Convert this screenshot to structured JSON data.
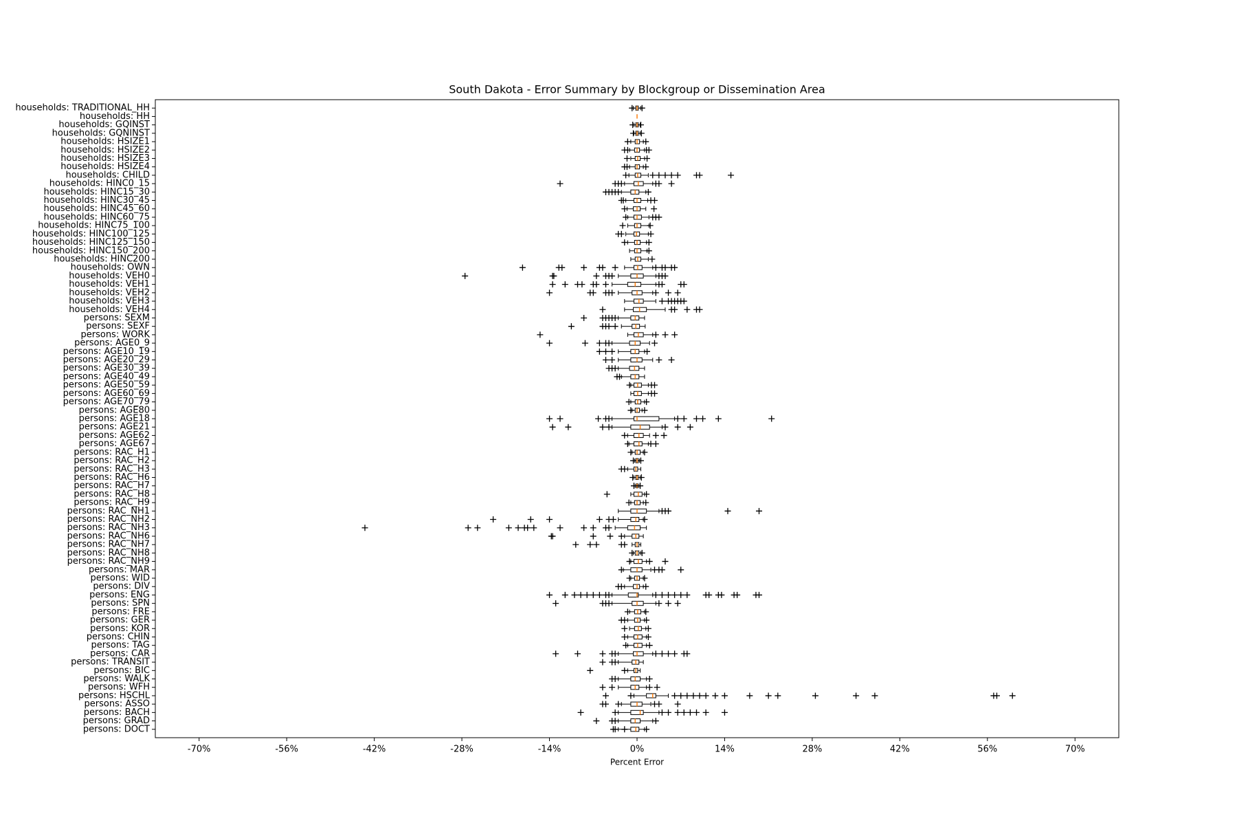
{
  "chart_data": {
    "type": "boxplot",
    "orientation": "horizontal",
    "title": "South Dakota - Error Summary by Blockgroup or Dissemination Area",
    "xlabel": "Percent Error",
    "xlim": [
      -77,
      77
    ],
    "xticks": [
      {
        "value": -70,
        "label": "-70%"
      },
      {
        "value": -56,
        "label": "-56%"
      },
      {
        "value": -42,
        "label": "-42%"
      },
      {
        "value": -28,
        "label": "-28%"
      },
      {
        "value": -14,
        "label": "-14%"
      },
      {
        "value": 0,
        "label": "0%"
      },
      {
        "value": 14,
        "label": "14%"
      },
      {
        "value": 28,
        "label": "28%"
      },
      {
        "value": 42,
        "label": "42%"
      },
      {
        "value": 56,
        "label": "56%"
      },
      {
        "value": 70,
        "label": "70%"
      }
    ],
    "color": "#000000",
    "median_color": "#ff7f0e",
    "grid": false,
    "categories": [
      "households: TRADITIONAL_HH",
      "households: HH",
      "households: GQINST",
      "households: GQNINST",
      "households: HSIZE1",
      "households: HSIZE2",
      "households: HSIZE3",
      "households: HSIZE4",
      "households: CHILD",
      "households: HINC0_15",
      "households: HINC15_30",
      "households: HINC30_45",
      "households: HINC45_60",
      "households: HINC60_75",
      "households: HINC75_100",
      "households: HINC100_125",
      "households: HINC125_150",
      "households: HINC150_200",
      "households: HINC200",
      "households: OWN",
      "households: VEH0",
      "households: VEH1",
      "households: VEH2",
      "households: VEH3",
      "households: VEH4",
      "persons: SEXM",
      "persons: SEXF",
      "persons: WORK",
      "persons: AGE0_9",
      "persons: AGE10_19",
      "persons: AGE20_29",
      "persons: AGE30_39",
      "persons: AGE40_49",
      "persons: AGE50_59",
      "persons: AGE60_69",
      "persons: AGE70_79",
      "persons: AGE80",
      "persons: AGE18",
      "persons: AGE21",
      "persons: AGE62",
      "persons: AGE67",
      "persons: RAC_H1",
      "persons: RAC_H2",
      "persons: RAC_H3",
      "persons: RAC_H6",
      "persons: RAC_H7",
      "persons: RAC_H8",
      "persons: RAC_H9",
      "persons: RAC_NH1",
      "persons: RAC_NH2",
      "persons: RAC_NH3",
      "persons: RAC_NH6",
      "persons: RAC_NH7",
      "persons: RAC_NH8",
      "persons: RAC_NH9",
      "persons: MAR",
      "persons: WID",
      "persons: DIV",
      "persons: ENG",
      "persons: SPN",
      "persons: FRE",
      "persons: GER",
      "persons: KOR",
      "persons: CHIN",
      "persons: TAG",
      "persons: CAR",
      "persons: TRANSIT",
      "persons: BIC",
      "persons: WALK",
      "persons: WFH",
      "persons: HSCHL",
      "persons: ASSO",
      "persons: BACH",
      "persons: GRAD",
      "persons: DOCT"
    ],
    "boxes": [
      {
        "q1": -0.2,
        "median": 0,
        "q3": 0.2,
        "whislo": -0.6,
        "whishi": 0.6,
        "fliers": [
          -0.8,
          0.8
        ]
      },
      {
        "q1": 0,
        "median": 0,
        "q3": 0,
        "whislo": 0,
        "whishi": 0,
        "fliers": []
      },
      {
        "q1": -0.2,
        "median": 0,
        "q3": 0.2,
        "whislo": -0.5,
        "whishi": 0.5,
        "fliers": [
          -0.7,
          0.6
        ]
      },
      {
        "q1": -0.2,
        "median": 0,
        "q3": 0.2,
        "whislo": -0.5,
        "whishi": 0.5,
        "fliers": [
          -0.6,
          0.7
        ]
      },
      {
        "q1": -0.3,
        "median": 0,
        "q3": 0.4,
        "whislo": -1,
        "whishi": 1,
        "fliers": [
          -1.5,
          1.4
        ]
      },
      {
        "q1": -0.4,
        "median": 0,
        "q3": 0.4,
        "whislo": -1.2,
        "whishi": 1.2,
        "fliers": [
          -2,
          -1.5,
          1.5,
          1.9
        ]
      },
      {
        "q1": -0.3,
        "median": 0.1,
        "q3": 0.5,
        "whislo": -1,
        "whishi": 1.2,
        "fliers": [
          -1.6,
          1.6
        ]
      },
      {
        "q1": -0.3,
        "median": 0,
        "q3": 0.4,
        "whislo": -1.2,
        "whishi": 1,
        "fliers": [
          -2,
          -1.6,
          1.4
        ]
      },
      {
        "q1": -0.3,
        "median": 0.1,
        "q3": 0.6,
        "whislo": -1.3,
        "whishi": 1.8,
        "fliers": [
          -1.8,
          2.5,
          3.5,
          4.5,
          5.5,
          6.5,
          9.5,
          10,
          15
        ]
      },
      {
        "q1": -0.5,
        "median": 0.2,
        "q3": 1,
        "whislo": -2,
        "whishi": 2.5,
        "fliers": [
          -12.3,
          -3.5,
          -3,
          -2.5,
          3,
          3.5,
          5.5
        ]
      },
      {
        "q1": -1,
        "median": -0.3,
        "q3": 0.3,
        "whislo": -2.5,
        "whishi": 1.4,
        "fliers": [
          -5,
          -4.5,
          -4,
          -3.5,
          -3,
          1.8
        ]
      },
      {
        "q1": -0.5,
        "median": 0,
        "q3": 0.6,
        "whislo": -1.8,
        "whishi": 1.7,
        "fliers": [
          -2.5,
          -2.2,
          2.2,
          2.8
        ]
      },
      {
        "q1": -0.6,
        "median": 0,
        "q3": 0.5,
        "whislo": -1.6,
        "whishi": 1.4,
        "fliers": [
          -2,
          2.7
        ]
      },
      {
        "q1": -0.5,
        "median": 0,
        "q3": 0.7,
        "whislo": -1.5,
        "whishi": 1.9,
        "fliers": [
          -1.8,
          2.5,
          3,
          3.5
        ]
      },
      {
        "q1": -0.4,
        "median": 0,
        "q3": 0.6,
        "whislo": -1.5,
        "whishi": 1.9,
        "fliers": [
          -2.3,
          2.1
        ]
      },
      {
        "q1": -0.5,
        "median": -0.1,
        "q3": 0.4,
        "whislo": -1.8,
        "whishi": 1.8,
        "fliers": [
          -3,
          -2.5,
          2.2
        ]
      },
      {
        "q1": -0.4,
        "median": 0,
        "q3": 0.5,
        "whislo": -1.5,
        "whishi": 1.5,
        "fliers": [
          -2,
          1.9
        ]
      },
      {
        "q1": -0.4,
        "median": 0,
        "q3": 0.6,
        "whislo": -1.2,
        "whishi": 1.6,
        "fliers": [
          1.9
        ]
      },
      {
        "q1": -0.3,
        "median": 0.1,
        "q3": 0.6,
        "whislo": -1,
        "whishi": 1.8,
        "fliers": [
          2.4
        ]
      },
      {
        "q1": -0.5,
        "median": 0.1,
        "q3": 0.8,
        "whislo": -2,
        "whishi": 2.5,
        "fliers": [
          -18.3,
          -12.5,
          -12,
          -8.5,
          -6,
          -5.5,
          -3.5,
          3,
          4,
          4.5,
          5.5,
          6
        ]
      },
      {
        "q1": -1,
        "median": 0,
        "q3": 1,
        "whislo": -3,
        "whishi": 3,
        "fliers": [
          -27.5,
          -13.5,
          -13.3,
          -6.5,
          -5,
          -4.5,
          -4,
          3.5,
          4,
          4.5
        ]
      },
      {
        "q1": -1.5,
        "median": -0.3,
        "q3": 0.6,
        "whislo": -4,
        "whishi": 3,
        "fliers": [
          -13.5,
          -11.5,
          -9.5,
          -8.8,
          -7,
          -6.5,
          -5,
          3.5,
          4,
          7,
          7.5
        ]
      },
      {
        "q1": -0.8,
        "median": 0,
        "q3": 0.8,
        "whislo": -3,
        "whishi": 2.5,
        "fliers": [
          -14,
          -7.5,
          -7,
          -5,
          -4.5,
          -4,
          3,
          5,
          6.5
        ]
      },
      {
        "q1": -0.5,
        "median": 0.3,
        "q3": 1,
        "whislo": -2,
        "whishi": 3,
        "fliers": [
          4,
          5,
          5.5,
          6,
          6.5,
          7,
          7.5
        ]
      },
      {
        "q1": -0.6,
        "median": 0.4,
        "q3": 1.5,
        "whislo": -2,
        "whishi": 4.5,
        "fliers": [
          -5.5,
          5.5,
          6,
          8,
          9.5,
          10
        ]
      },
      {
        "q1": -1,
        "median": -0.3,
        "q3": 0.3,
        "whislo": -3,
        "whishi": 1.2,
        "fliers": [
          -8.5,
          -5.5,
          -5,
          -4.5,
          -4,
          -3.5
        ]
      },
      {
        "q1": -0.8,
        "median": -0.2,
        "q3": 0.4,
        "whislo": -2.5,
        "whishi": 1.3,
        "fliers": [
          -10.5,
          -5.5,
          -5,
          -4.5,
          -3.5
        ]
      },
      {
        "q1": -0.5,
        "median": 0.2,
        "q3": 1,
        "whislo": -1.5,
        "whishi": 2.5,
        "fliers": [
          -15.5,
          3,
          4.5,
          6
        ]
      },
      {
        "q1": -1.2,
        "median": -0.3,
        "q3": 0.5,
        "whislo": -4,
        "whishi": 2,
        "fliers": [
          -14,
          -8.3,
          -6,
          -5,
          -4.5,
          2.8
        ]
      },
      {
        "q1": -1,
        "median": -0.3,
        "q3": 0.3,
        "whislo": -3,
        "whishi": 1.2,
        "fliers": [
          -6,
          -5,
          -4,
          1.6
        ]
      },
      {
        "q1": -1,
        "median": 0,
        "q3": 0.8,
        "whislo": -3,
        "whishi": 2.5,
        "fliers": [
          -5,
          -4,
          3.5,
          5.5
        ]
      },
      {
        "q1": -1.2,
        "median": -0.4,
        "q3": 0.3,
        "whislo": -3,
        "whishi": 1.2,
        "fliers": [
          -4.5,
          -4,
          -3.5
        ]
      },
      {
        "q1": -1,
        "median": -0.3,
        "q3": 0.3,
        "whislo": -2.5,
        "whishi": 1.2,
        "fliers": [
          -3.2,
          -2.8
        ]
      },
      {
        "q1": -0.5,
        "median": 0.1,
        "q3": 0.7,
        "whislo": -1,
        "whishi": 1.8,
        "fliers": [
          -1.2,
          2.3,
          2.8
        ]
      },
      {
        "q1": -0.5,
        "median": 0.1,
        "q3": 0.7,
        "whislo": -1,
        "whishi": 1.8,
        "fliers": [
          2.3,
          2.8
        ]
      },
      {
        "q1": -0.3,
        "median": 0.1,
        "q3": 0.6,
        "whislo": -1,
        "whishi": 1.2,
        "fliers": [
          -1.3,
          1.5
        ]
      },
      {
        "q1": -0.3,
        "median": 0,
        "q3": 0.4,
        "whislo": -0.8,
        "whishi": 0.8,
        "fliers": [
          -1,
          1.2
        ]
      },
      {
        "q1": -0.5,
        "median": 0,
        "q3": 3.5,
        "whislo": -4,
        "whishi": 6,
        "fliers": [
          -14,
          -12.3,
          -6.2,
          -5,
          -4.5,
          6.5,
          7.5,
          9.5,
          10.5,
          13,
          21.5
        ]
      },
      {
        "q1": -1,
        "median": 0.5,
        "q3": 2,
        "whislo": -4,
        "whishi": 4,
        "fliers": [
          -13.5,
          -11,
          -5.5,
          -4.5,
          4.5,
          6.5,
          8.5
        ]
      },
      {
        "q1": -0.5,
        "median": 0.3,
        "q3": 1,
        "whislo": -1.5,
        "whishi": 2,
        "fliers": [
          -2,
          3,
          4.3
        ]
      },
      {
        "q1": -0.5,
        "median": 0.3,
        "q3": 0.8,
        "whislo": -1.3,
        "whishi": 1.8,
        "fliers": [
          -1.5,
          2.2,
          3
        ]
      },
      {
        "q1": -0.3,
        "median": 0,
        "q3": 0.5,
        "whislo": -0.8,
        "whishi": 1,
        "fliers": [
          -1,
          1.2
        ]
      },
      {
        "q1": -0.2,
        "median": 0,
        "q3": 0.2,
        "whislo": -0.4,
        "whishi": 0.4,
        "fliers": [
          -0.6,
          0.6
        ]
      },
      {
        "q1": -0.5,
        "median": -0.2,
        "q3": 0.1,
        "whislo": -1.5,
        "whishi": 0.6,
        "fliers": [
          -2.5,
          -2
        ]
      },
      {
        "q1": -0.2,
        "median": 0,
        "q3": 0.2,
        "whislo": -0.5,
        "whishi": 0.5,
        "fliers": [
          -0.7,
          0.7
        ]
      },
      {
        "q1": -0.1,
        "median": 0,
        "q3": 0.1,
        "whislo": -0.3,
        "whishi": 0.3,
        "fliers": [
          -0.5,
          0.5
        ]
      },
      {
        "q1": -0.5,
        "median": 0.2,
        "q3": 0.8,
        "whislo": -1,
        "whishi": 1.2,
        "fliers": [
          -4.8,
          1.5
        ]
      },
      {
        "q1": -0.4,
        "median": 0,
        "q3": 0.5,
        "whislo": -1,
        "whishi": 1,
        "fliers": [
          -1.3,
          1.4
        ]
      },
      {
        "q1": -1,
        "median": 0,
        "q3": 1.5,
        "whislo": -3,
        "whishi": 3.5,
        "fliers": [
          4,
          4.5,
          5,
          14.5,
          19.5
        ]
      },
      {
        "q1": -1,
        "median": -0.2,
        "q3": 0.3,
        "whislo": -3,
        "whishi": 1,
        "fliers": [
          -23,
          -17,
          -14,
          -6,
          -4.5,
          -3.8,
          1.2
        ]
      },
      {
        "q1": -1.5,
        "median": -0.4,
        "q3": 0.5,
        "whislo": -3.5,
        "whishi": 1.5,
        "fliers": [
          -43.5,
          -27,
          -25.5,
          -20.5,
          -19,
          -18,
          -17.5,
          -16.5,
          -12.3,
          -8.5,
          -7,
          -5,
          -4.5
        ]
      },
      {
        "q1": -0.8,
        "median": -0.2,
        "q3": 0.3,
        "whislo": -2,
        "whishi": 1,
        "fliers": [
          -13.7,
          -13.5,
          -7,
          -4.3,
          -2.5
        ]
      },
      {
        "q1": -0.3,
        "median": 0,
        "q3": 0.3,
        "whislo": -0.8,
        "whishi": 0.6,
        "fliers": [
          -9.8,
          -7.5,
          -6.5,
          -2.5,
          -2
        ]
      },
      {
        "q1": -0.3,
        "median": 0,
        "q3": 0.3,
        "whislo": -0.6,
        "whishi": 0.6,
        "fliers": [
          -0.8,
          0.8
        ]
      },
      {
        "q1": -0.5,
        "median": 0.2,
        "q3": 0.8,
        "whislo": -1,
        "whishi": 1.5,
        "fliers": [
          -1.2,
          2,
          4.5
        ]
      },
      {
        "q1": -1,
        "median": 0,
        "q3": 0.8,
        "whislo": -2.2,
        "whishi": 2.2,
        "fliers": [
          -2.5,
          2.8,
          3.5,
          4,
          7
        ]
      },
      {
        "q1": -0.4,
        "median": 0,
        "q3": 0.4,
        "whislo": -1,
        "whishi": 1,
        "fliers": [
          -1.2,
          1.2
        ]
      },
      {
        "q1": -0.6,
        "median": 0,
        "q3": 0.4,
        "whislo": -2,
        "whishi": 1,
        "fliers": [
          -3,
          -2.5,
          1.4
        ]
      },
      {
        "q1": -1.4,
        "median": 0,
        "q3": 0.2,
        "whislo": -4,
        "whishi": 2.5,
        "fliers": [
          -14,
          -11.5,
          -10,
          -9,
          -8,
          -7,
          -6,
          -5,
          -4.5,
          3,
          4,
          5,
          6,
          7,
          8,
          11,
          11.5,
          13,
          13.5,
          15.5,
          16,
          19,
          19.5
        ]
      },
      {
        "q1": -0.8,
        "median": 0,
        "q3": 1,
        "whislo": -4,
        "whishi": 3,
        "fliers": [
          -13,
          -5.5,
          -5,
          -4.5,
          3.5,
          5,
          6.5
        ]
      },
      {
        "q1": -0.4,
        "median": 0.1,
        "q3": 0.6,
        "whislo": -1.2,
        "whishi": 1.2,
        "fliers": [
          -1.5,
          1.4
        ]
      },
      {
        "q1": -0.4,
        "median": 0.1,
        "q3": 0.5,
        "whislo": -1.5,
        "whishi": 1.2,
        "fliers": [
          -2.5,
          -2,
          1.5
        ]
      },
      {
        "q1": -0.4,
        "median": 0.2,
        "q3": 0.7,
        "whislo": -1.2,
        "whishi": 1.4,
        "fliers": [
          -2,
          1.8
        ]
      },
      {
        "q1": -0.5,
        "median": 0.1,
        "q3": 0.8,
        "whislo": -1.5,
        "whishi": 1.5,
        "fliers": [
          -2,
          1.8
        ]
      },
      {
        "q1": -0.5,
        "median": 0.1,
        "q3": 0.8,
        "whislo": -1.5,
        "whishi": 1.5,
        "fliers": [
          -1.8,
          2
        ]
      },
      {
        "q1": -0.6,
        "median": 0,
        "q3": 1,
        "whislo": -3,
        "whishi": 2.5,
        "fliers": [
          -13,
          -9.5,
          -5.5,
          -4,
          -3.5,
          3,
          4,
          5,
          6,
          7.5,
          8
        ]
      },
      {
        "q1": -0.8,
        "median": -0.2,
        "q3": 0.3,
        "whislo": -3,
        "whishi": 1,
        "fliers": [
          -5.5,
          -4,
          -3.5
        ]
      },
      {
        "q1": -0.5,
        "median": -0.2,
        "q3": 0.1,
        "whislo": -1.5,
        "whishi": 0.5,
        "fliers": [
          -7.5,
          -2
        ]
      },
      {
        "q1": -1,
        "median": -0.3,
        "q3": 0.5,
        "whislo": -3,
        "whishi": 1.5,
        "fliers": [
          -4,
          -3.5,
          2
        ]
      },
      {
        "q1": -1,
        "median": -0.3,
        "q3": 0.3,
        "whislo": -3,
        "whishi": 1.5,
        "fliers": [
          -5.5,
          -4,
          2,
          3.2
        ]
      },
      {
        "q1": 1.5,
        "median": 2.5,
        "q3": 3,
        "whislo": -0.5,
        "whishi": 5,
        "fliers": [
          -5,
          -1,
          6,
          7,
          8,
          9,
          10,
          11,
          12.5,
          14,
          18,
          21,
          22.5,
          28.5,
          35,
          38,
          57,
          57.5,
          60
        ]
      },
      {
        "q1": -1,
        "median": 0,
        "q3": 0.8,
        "whislo": -2.5,
        "whishi": 2.2,
        "fliers": [
          -5.5,
          -5,
          -3,
          2.8,
          3.5,
          6.5
        ]
      },
      {
        "q1": -1,
        "median": 0.5,
        "q3": 1,
        "whislo": -3,
        "whishi": 3.5,
        "fliers": [
          -9,
          -3.5,
          4,
          5,
          6.5,
          7.5,
          8.5,
          9.5,
          11,
          14
        ]
      },
      {
        "q1": -1,
        "median": -0.3,
        "q3": 0.5,
        "whislo": -3,
        "whishi": 2.5,
        "fliers": [
          -6.5,
          -4,
          -3.5,
          3
        ]
      },
      {
        "q1": -1,
        "median": -0.2,
        "q3": 0.3,
        "whislo": -3,
        "whishi": 1.2,
        "fliers": [
          -3.8,
          -3.5,
          -2,
          1.5
        ]
      }
    ]
  }
}
